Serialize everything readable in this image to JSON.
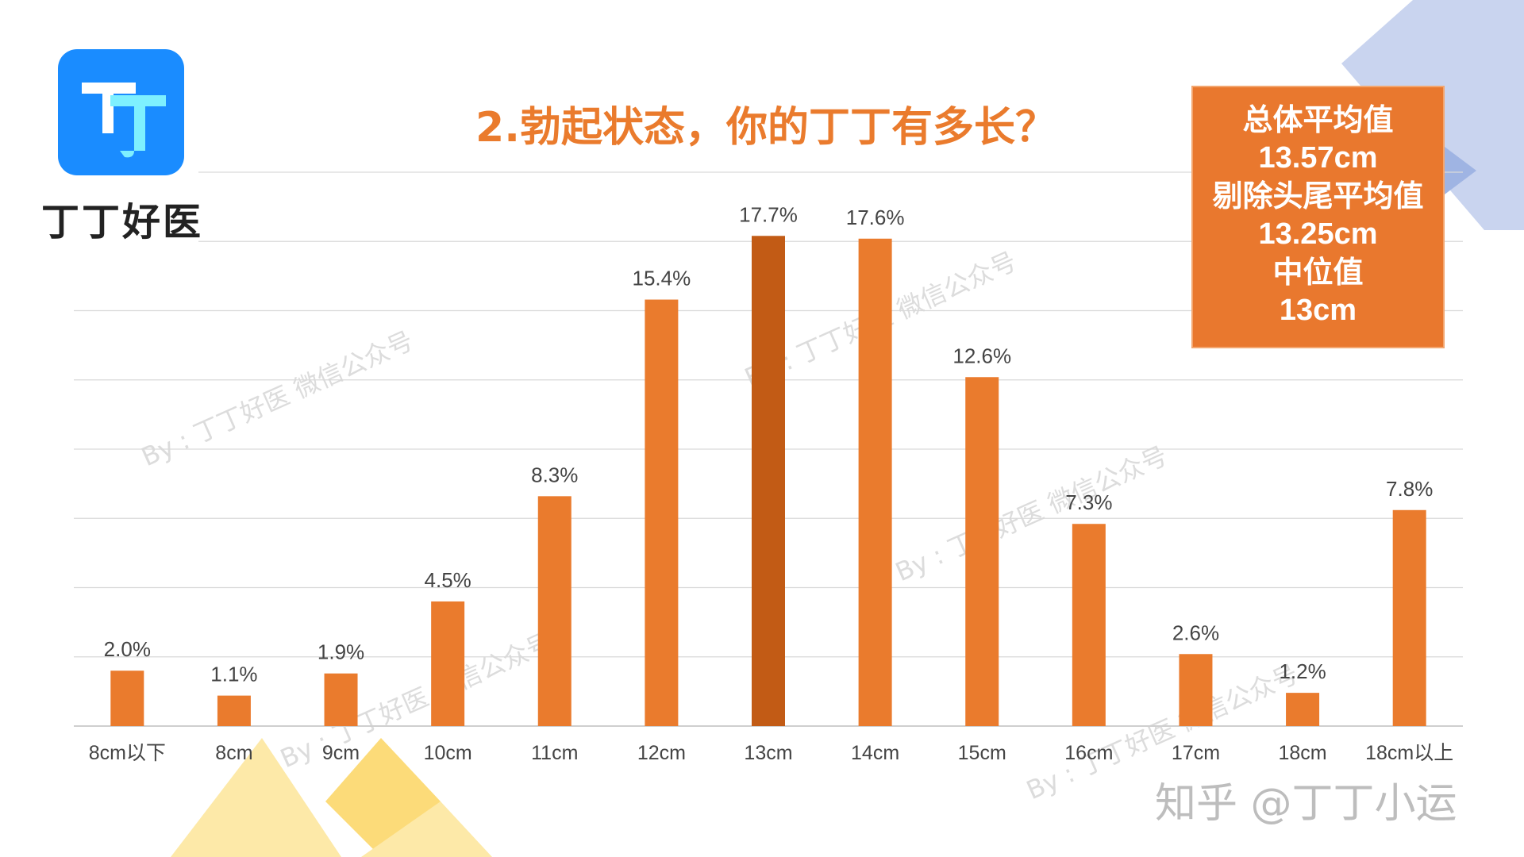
{
  "logo": {
    "icon_text": "丁",
    "name": "丁丁好医",
    "colors": {
      "tile": "#1a8cff",
      "glyph_white": "#ffffff",
      "glyph_cyan": "#7ef0ff"
    }
  },
  "title": "2.勃起状态，你的丁丁有多长？",
  "stats": {
    "overall_mean_label": "总体平均值",
    "overall_mean_value": "13.57cm",
    "trimmed_mean_label": "剔除头尾平均值",
    "trimmed_mean_value": "13.25cm",
    "median_label": "中位值",
    "median_value": "13cm"
  },
  "watermarks": [
    "By : 丁丁好医 微信公众号",
    "By : 丁丁好医 微信公众号",
    "By : 丁丁好医 微信公众号",
    "By : 丁丁好医 微信公众号",
    "By : 丁丁好医 微信公众号"
  ],
  "footer": "知乎 @丁丁小运",
  "chart_data": {
    "type": "bar",
    "title": "2.勃起状态，你的丁丁有多长？",
    "xlabel": "",
    "ylabel": "",
    "categories": [
      "8cm以下",
      "8cm",
      "9cm",
      "10cm",
      "11cm",
      "12cm",
      "13cm",
      "14cm",
      "15cm",
      "16cm",
      "17cm",
      "18cm",
      "18cm以上"
    ],
    "values": [
      2.0,
      1.1,
      1.9,
      4.5,
      8.3,
      15.4,
      17.7,
      17.6,
      12.6,
      7.3,
      2.6,
      1.2,
      7.8
    ],
    "value_labels": [
      "2.0%",
      "1.1%",
      "1.9%",
      "4.5%",
      "8.3%",
      "15.4%",
      "17.7%",
      "17.6%",
      "12.6%",
      "7.3%",
      "2.6%",
      "1.2%",
      "7.8%"
    ],
    "unit": "%",
    "ylim": [
      0,
      20
    ],
    "grid": true,
    "legend": "none",
    "highlight_category": "13cm",
    "colors": {
      "bar": "#ea7b2d",
      "highlight": "#c25b15",
      "grid": "#d9d9d9",
      "label": "#444444"
    }
  }
}
